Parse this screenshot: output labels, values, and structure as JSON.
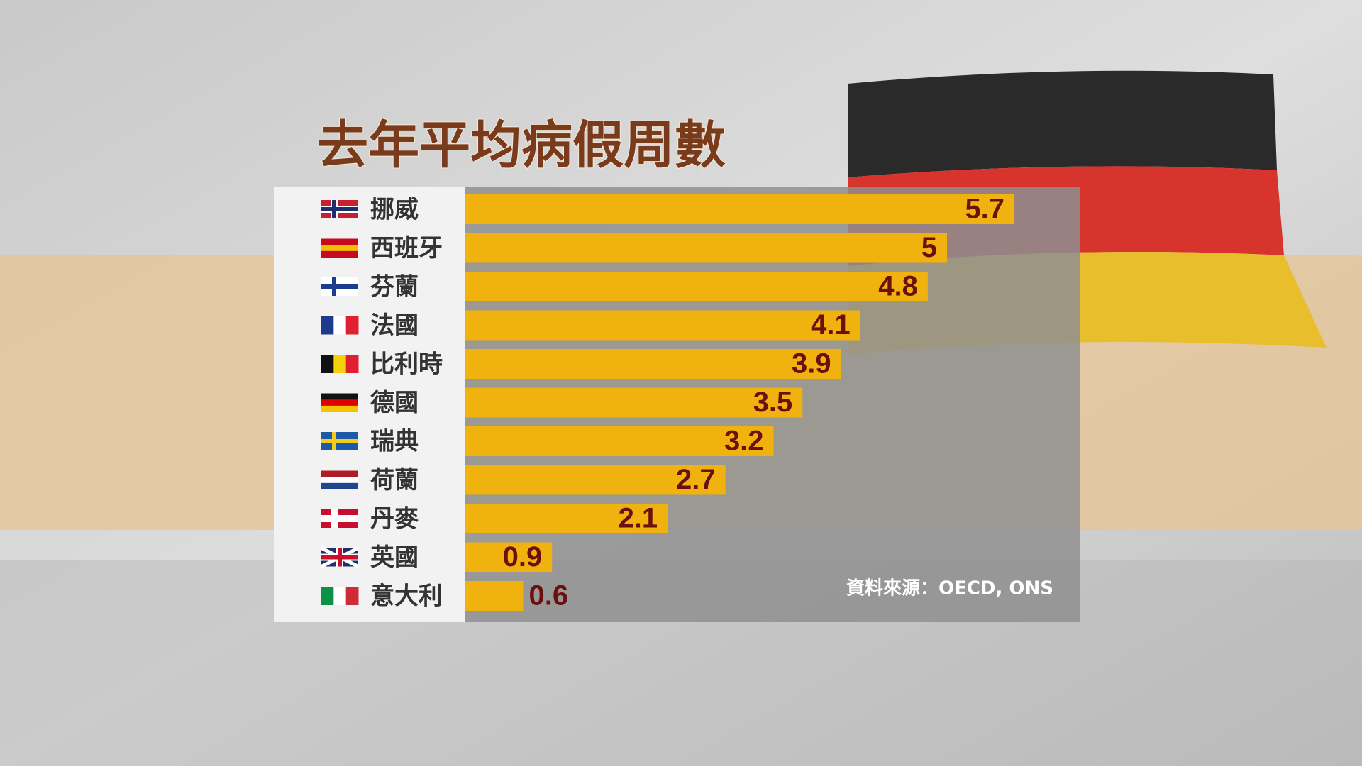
{
  "chart_data": {
    "type": "bar",
    "orientation": "horizontal",
    "title": "去年平均病假周數",
    "categories": [
      "挪威",
      "西班牙",
      "芬蘭",
      "法國",
      "比利時",
      "德國",
      "瑞典",
      "荷蘭",
      "丹麥",
      "英國",
      "意大利"
    ],
    "values": [
      5.7,
      5,
      4.8,
      4.1,
      3.9,
      3.5,
      3.2,
      2.7,
      2.1,
      0.9,
      0.6
    ],
    "color": "#f0b20e",
    "source": "資料來源：OECD, ONS"
  }
}
